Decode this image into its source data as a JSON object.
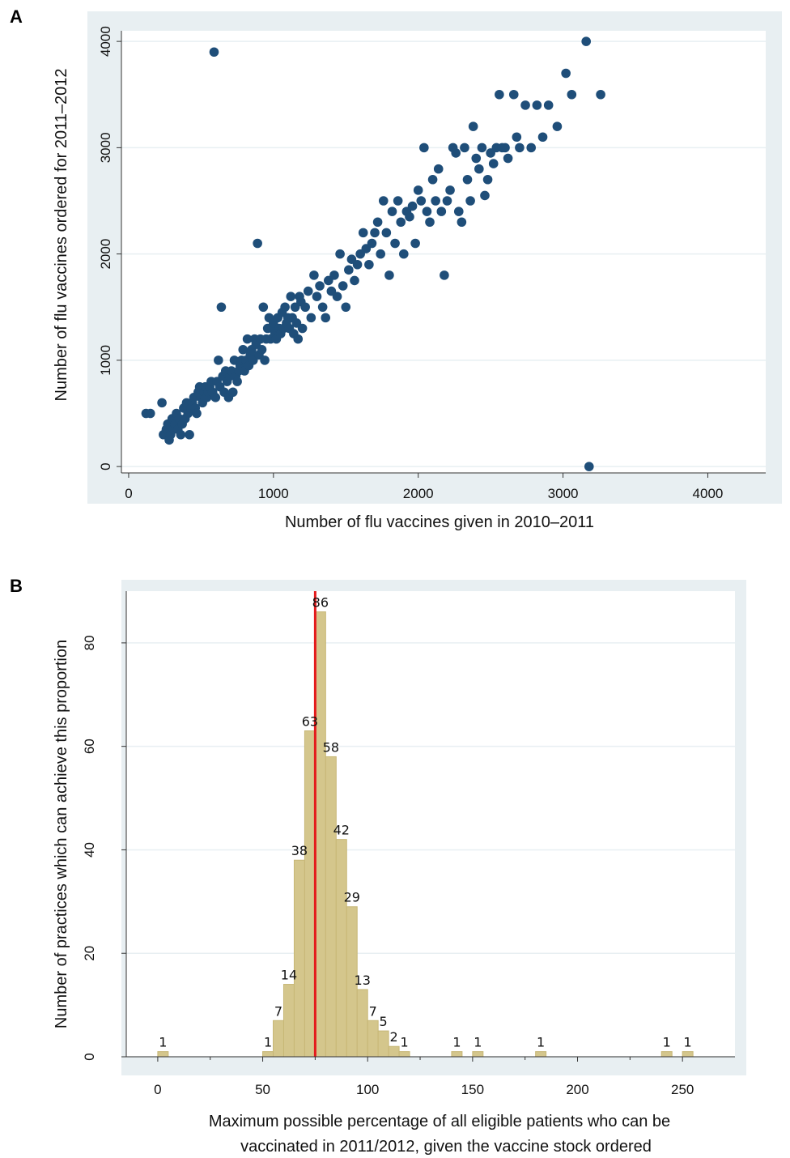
{
  "panels": {
    "a_label": "A",
    "b_label": "B"
  },
  "colors": {
    "panel_bg": "#e8eff2",
    "plot_bg": "#ffffff",
    "grid": "#e8eff2",
    "scatter_point": "#1f4e79",
    "bar_fill": "#d4c68c",
    "bar_edge": "#c7b776",
    "ref_line": "#e41a1c"
  },
  "chart_data": [
    {
      "type": "scatter",
      "xlabel": "Number of flu vaccines given in 2010–2011",
      "ylabel": "Number of flu vaccines ordered for 2011–2012",
      "xlim": [
        -50,
        4400
      ],
      "ylim": [
        -60,
        4100
      ],
      "xticks": [
        0,
        1000,
        2000,
        3000,
        4000
      ],
      "yticks": [
        0,
        1000,
        2000,
        3000,
        4000
      ],
      "grid": true,
      "points": [
        [
          120,
          500
        ],
        [
          150,
          500
        ],
        [
          230,
          600
        ],
        [
          240,
          300
        ],
        [
          260,
          350
        ],
        [
          270,
          400
        ],
        [
          280,
          250
        ],
        [
          290,
          300
        ],
        [
          300,
          450
        ],
        [
          310,
          350
        ],
        [
          320,
          400
        ],
        [
          330,
          500
        ],
        [
          340,
          350
        ],
        [
          350,
          450
        ],
        [
          360,
          300
        ],
        [
          370,
          400
        ],
        [
          380,
          550
        ],
        [
          390,
          450
        ],
        [
          400,
          600
        ],
        [
          410,
          500
        ],
        [
          420,
          300
        ],
        [
          430,
          550
        ],
        [
          440,
          600
        ],
        [
          450,
          650
        ],
        [
          460,
          550
        ],
        [
          470,
          500
        ],
        [
          480,
          700
        ],
        [
          490,
          750
        ],
        [
          500,
          650
        ],
        [
          510,
          600
        ],
        [
          520,
          700
        ],
        [
          530,
          750
        ],
        [
          540,
          650
        ],
        [
          550,
          700
        ],
        [
          560,
          750
        ],
        [
          570,
          800
        ],
        [
          580,
          700
        ],
        [
          590,
          3900
        ],
        [
          600,
          650
        ],
        [
          610,
          800
        ],
        [
          620,
          1000
        ],
        [
          630,
          750
        ],
        [
          640,
          1500
        ],
        [
          650,
          850
        ],
        [
          660,
          700
        ],
        [
          670,
          900
        ],
        [
          680,
          800
        ],
        [
          690,
          650
        ],
        [
          700,
          850
        ],
        [
          710,
          900
        ],
        [
          720,
          700
        ],
        [
          730,
          1000
        ],
        [
          740,
          850
        ],
        [
          750,
          800
        ],
        [
          760,
          900
        ],
        [
          770,
          950
        ],
        [
          780,
          1000
        ],
        [
          790,
          1100
        ],
        [
          800,
          900
        ],
        [
          810,
          1000
        ],
        [
          820,
          1200
        ],
        [
          830,
          950
        ],
        [
          840,
          1050
        ],
        [
          850,
          1100
        ],
        [
          860,
          1000
        ],
        [
          870,
          1200
        ],
        [
          880,
          1150
        ],
        [
          890,
          2100
        ],
        [
          900,
          1050
        ],
        [
          910,
          1200
        ],
        [
          920,
          1100
        ],
        [
          930,
          1500
        ],
        [
          940,
          1000
        ],
        [
          950,
          1200
        ],
        [
          960,
          1300
        ],
        [
          970,
          1400
        ],
        [
          980,
          1200
        ],
        [
          990,
          1300
        ],
        [
          1000,
          1350
        ],
        [
          1010,
          1250
        ],
        [
          1020,
          1200
        ],
        [
          1030,
          1400
        ],
        [
          1040,
          1300
        ],
        [
          1050,
          1250
        ],
        [
          1060,
          1450
        ],
        [
          1070,
          1300
        ],
        [
          1080,
          1500
        ],
        [
          1090,
          1350
        ],
        [
          1100,
          1400
        ],
        [
          1110,
          1300
        ],
        [
          1120,
          1600
        ],
        [
          1130,
          1400
        ],
        [
          1140,
          1250
        ],
        [
          1150,
          1500
        ],
        [
          1160,
          1350
        ],
        [
          1170,
          1200
        ],
        [
          1180,
          1600
        ],
        [
          1190,
          1550
        ],
        [
          1200,
          1300
        ],
        [
          1220,
          1500
        ],
        [
          1240,
          1650
        ],
        [
          1260,
          1400
        ],
        [
          1280,
          1800
        ],
        [
          1300,
          1600
        ],
        [
          1320,
          1700
        ],
        [
          1340,
          1500
        ],
        [
          1360,
          1400
        ],
        [
          1380,
          1750
        ],
        [
          1400,
          1650
        ],
        [
          1420,
          1800
        ],
        [
          1440,
          1600
        ],
        [
          1460,
          2000
        ],
        [
          1480,
          1700
        ],
        [
          1500,
          1500
        ],
        [
          1520,
          1850
        ],
        [
          1540,
          1950
        ],
        [
          1560,
          1750
        ],
        [
          1580,
          1900
        ],
        [
          1600,
          2000
        ],
        [
          1620,
          2200
        ],
        [
          1640,
          2050
        ],
        [
          1660,
          1900
        ],
        [
          1680,
          2100
        ],
        [
          1700,
          2200
        ],
        [
          1720,
          2300
        ],
        [
          1740,
          2000
        ],
        [
          1760,
          2500
        ],
        [
          1780,
          2200
        ],
        [
          1800,
          1800
        ],
        [
          1820,
          2400
        ],
        [
          1840,
          2100
        ],
        [
          1860,
          2500
        ],
        [
          1880,
          2300
        ],
        [
          1900,
          2000
        ],
        [
          1920,
          2400
        ],
        [
          1940,
          2350
        ],
        [
          1960,
          2450
        ],
        [
          1980,
          2100
        ],
        [
          2000,
          2600
        ],
        [
          2020,
          2500
        ],
        [
          2040,
          3000
        ],
        [
          2060,
          2400
        ],
        [
          2080,
          2300
        ],
        [
          2100,
          2700
        ],
        [
          2120,
          2500
        ],
        [
          2140,
          2800
        ],
        [
          2160,
          2400
        ],
        [
          2180,
          1800
        ],
        [
          2200,
          2500
        ],
        [
          2220,
          2600
        ],
        [
          2240,
          3000
        ],
        [
          2260,
          2950
        ],
        [
          2280,
          2400
        ],
        [
          2300,
          2300
        ],
        [
          2320,
          3000
        ],
        [
          2340,
          2700
        ],
        [
          2360,
          2500
        ],
        [
          2380,
          3200
        ],
        [
          2400,
          2900
        ],
        [
          2420,
          2800
        ],
        [
          2440,
          3000
        ],
        [
          2460,
          2550
        ],
        [
          2480,
          2700
        ],
        [
          2500,
          2950
        ],
        [
          2520,
          2850
        ],
        [
          2540,
          3000
        ],
        [
          2560,
          3500
        ],
        [
          2580,
          3000
        ],
        [
          2600,
          3000
        ],
        [
          2620,
          2900
        ],
        [
          2660,
          3500
        ],
        [
          2680,
          3100
        ],
        [
          2700,
          3000
        ],
        [
          2740,
          3400
        ],
        [
          2780,
          3000
        ],
        [
          2820,
          3400
        ],
        [
          2860,
          3100
        ],
        [
          2900,
          3400
        ],
        [
          2960,
          3200
        ],
        [
          3020,
          3700
        ],
        [
          3060,
          3500
        ],
        [
          3160,
          4000
        ],
        [
          3180,
          0
        ],
        [
          3260,
          3500
        ]
      ]
    },
    {
      "type": "bar",
      "xlabel_line1": "Maximum possible percentage of all eligible patients who can be",
      "xlabel_line2": "vaccinated in 2011/2012, given the vaccine stock ordered",
      "ylabel": "Number of practices which can achieve this proportion",
      "xlim": [
        -15,
        275
      ],
      "ylim": [
        0,
        90
      ],
      "xticks": [
        0,
        50,
        100,
        150,
        200,
        250
      ],
      "yticks": [
        0,
        20,
        40,
        60,
        80
      ],
      "bin_width": 5,
      "bins": [
        {
          "x": 2.5,
          "count": 1,
          "label": "1"
        },
        {
          "x": 52.5,
          "count": 1,
          "label": "1"
        },
        {
          "x": 57.5,
          "count": 7,
          "label": "7"
        },
        {
          "x": 62.5,
          "count": 14,
          "label": "14"
        },
        {
          "x": 67.5,
          "count": 38,
          "label": "38"
        },
        {
          "x": 72.5,
          "count": 63,
          "label": "63"
        },
        {
          "x": 77.5,
          "count": 86,
          "label": "86"
        },
        {
          "x": 82.5,
          "count": 58,
          "label": "58"
        },
        {
          "x": 87.5,
          "count": 42,
          "label": "42"
        },
        {
          "x": 92.5,
          "count": 29,
          "label": "29"
        },
        {
          "x": 97.5,
          "count": 13,
          "label": "13"
        },
        {
          "x": 102.5,
          "count": 7,
          "label": "7"
        },
        {
          "x": 107.5,
          "count": 5,
          "label": "5"
        },
        {
          "x": 112.5,
          "count": 2,
          "label": "2"
        },
        {
          "x": 117.5,
          "count": 1,
          "label": "1"
        },
        {
          "x": 142.5,
          "count": 1,
          "label": "1"
        },
        {
          "x": 152.5,
          "count": 1,
          "label": "1"
        },
        {
          "x": 182.5,
          "count": 1,
          "label": "1"
        },
        {
          "x": 242.5,
          "count": 1,
          "label": "1"
        },
        {
          "x": 252.5,
          "count": 1,
          "label": "1"
        }
      ],
      "reference_line_x": 75
    }
  ]
}
